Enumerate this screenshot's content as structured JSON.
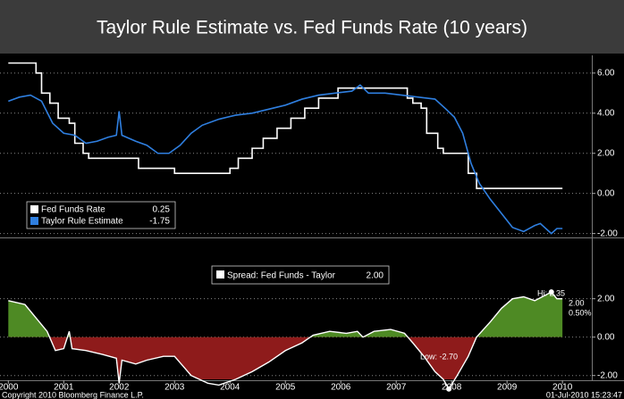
{
  "chart_data": [
    {
      "type": "line",
      "title": "Taylor Rule Estimate vs. Fed Funds Rate (10 years)",
      "xlim": [
        2000.35,
        2011.03
      ],
      "ylim": [
        -2.15,
        6.75
      ],
      "yticks": [
        {
          "value": 6,
          "label": "6.00"
        },
        {
          "value": 4,
          "label": "4.00"
        },
        {
          "value": 2,
          "label": "2.00"
        },
        {
          "value": 0,
          "label": "0.00"
        },
        {
          "value": -2,
          "label": "-2.00"
        }
      ],
      "grid": true,
      "legend": "lower left",
      "series": [
        {
          "name": "Fed Funds Rate",
          "color": "#ffffff",
          "step": true,
          "legend_value": "0.25",
          "x": [
            2000.5,
            2001.0,
            2001.1,
            2001.25,
            2001.4,
            2001.6,
            2001.7,
            2001.85,
            2001.95,
            2002.85,
            2003.5,
            2004.5,
            2004.65,
            2004.9,
            2005.1,
            2005.35,
            2005.6,
            2005.85,
            2006.1,
            2006.45,
            2007.7,
            2007.8,
            2007.95,
            2008.05,
            2008.25,
            2008.35,
            2008.8,
            2008.95,
            2010.5
          ],
          "values": [
            6.5,
            6.0,
            5.0,
            4.5,
            3.75,
            3.5,
            2.5,
            2.0,
            1.75,
            1.25,
            1.0,
            1.25,
            1.75,
            2.25,
            2.75,
            3.25,
            3.75,
            4.25,
            4.75,
            5.25,
            4.75,
            4.5,
            4.25,
            3.0,
            2.25,
            2.0,
            1.0,
            0.25,
            0.25
          ]
        },
        {
          "name": "Taylor Rule Estimate",
          "color": "#2f7fe0",
          "step": false,
          "legend_value": "-1.75",
          "x": [
            2000.5,
            2000.7,
            2000.9,
            2001.1,
            2001.3,
            2001.5,
            2001.7,
            2001.9,
            2002.1,
            2002.3,
            2002.45,
            2002.5,
            2002.55,
            2002.8,
            2003.0,
            2003.2,
            2003.4,
            2003.6,
            2003.8,
            2004.0,
            2004.3,
            2004.6,
            2004.9,
            2005.2,
            2005.5,
            2005.8,
            2006.1,
            2006.4,
            2006.7,
            2006.85,
            2007.0,
            2007.3,
            2007.6,
            2007.9,
            2008.2,
            2008.4,
            2008.55,
            2008.7,
            2008.85,
            2009.0,
            2009.2,
            2009.4,
            2009.6,
            2009.8,
            2010.0,
            2010.1,
            2010.3,
            2010.4,
            2010.5
          ],
          "values": [
            4.6,
            4.8,
            4.9,
            4.6,
            3.5,
            3.0,
            2.9,
            2.5,
            2.6,
            2.8,
            2.9,
            4.1,
            2.9,
            2.6,
            2.4,
            2.0,
            2.0,
            2.4,
            3.0,
            3.4,
            3.7,
            3.9,
            4.0,
            4.2,
            4.4,
            4.7,
            4.9,
            5.0,
            5.1,
            5.4,
            5.0,
            5.0,
            4.9,
            4.8,
            4.7,
            4.2,
            3.8,
            3.0,
            1.5,
            0.5,
            -0.3,
            -1.0,
            -1.7,
            -1.9,
            -1.6,
            -1.5,
            -2.0,
            -1.75,
            -1.75
          ]
        }
      ]
    },
    {
      "type": "area",
      "xlim": [
        2000.35,
        2011.03
      ],
      "ylim": [
        -2.2,
        5.1
      ],
      "yticks": [
        {
          "value": 2,
          "label": "2.00"
        },
        {
          "value": 0,
          "label": "0.00"
        },
        {
          "value": -2,
          "label": "-2.00"
        }
      ],
      "xticks": [
        {
          "value": 2000.5,
          "label": "2000"
        },
        {
          "value": 2001.5,
          "label": "2001"
        },
        {
          "value": 2002.5,
          "label": "2002"
        },
        {
          "value": 2003.5,
          "label": "2003"
        },
        {
          "value": 2004.5,
          "label": "2004"
        },
        {
          "value": 2005.5,
          "label": "2005"
        },
        {
          "value": 2006.5,
          "label": "2006"
        },
        {
          "value": 2007.5,
          "label": "2007"
        },
        {
          "value": 2008.5,
          "label": "2008"
        },
        {
          "value": 2009.5,
          "label": "2009"
        },
        {
          "value": 2010.5,
          "label": "2010"
        }
      ],
      "grid": true,
      "series": [
        {
          "name": "Spread: Fed Funds - Taylor",
          "color": "#ffffff",
          "positive_color": "#4e8a24",
          "negative_color": "#8e1b1b",
          "legend_value": "2.00",
          "x": [
            2000.5,
            2000.8,
            2001.0,
            2001.2,
            2001.35,
            2001.5,
            2001.6,
            2001.65,
            2001.9,
            2002.2,
            2002.45,
            2002.5,
            2002.55,
            2002.8,
            2003.0,
            2003.3,
            2003.5,
            2003.8,
            2004.1,
            2004.3,
            2004.6,
            2004.9,
            2005.2,
            2005.5,
            2005.8,
            2006.0,
            2006.3,
            2006.6,
            2006.8,
            2006.9,
            2007.1,
            2007.4,
            2007.65,
            2007.8,
            2008.0,
            2008.2,
            2008.35,
            2008.45,
            2008.6,
            2008.8,
            2008.95,
            2009.2,
            2009.4,
            2009.6,
            2009.8,
            2010.0,
            2010.2,
            2010.3,
            2010.4,
            2010.5
          ],
          "values": [
            1.9,
            1.7,
            1.0,
            0.3,
            -0.7,
            -0.6,
            0.3,
            -0.6,
            -0.7,
            -0.9,
            -1.1,
            -2.4,
            -1.2,
            -1.4,
            -1.2,
            -1.0,
            -1.0,
            -2.0,
            -2.4,
            -2.5,
            -2.2,
            -1.8,
            -1.3,
            -0.7,
            -0.3,
            0.1,
            0.3,
            0.2,
            0.3,
            0.0,
            0.3,
            0.4,
            0.2,
            -0.3,
            -1.0,
            -1.8,
            -2.2,
            -2.7,
            -2.0,
            -1.0,
            0.0,
            0.8,
            1.5,
            2.0,
            2.1,
            1.9,
            2.2,
            2.35,
            2.0,
            2.0
          ]
        }
      ],
      "annotations": [
        {
          "text": "Hi: 2.35",
          "point": 47
        },
        {
          "text": "2.00"
        },
        {
          "text": "0.50%"
        },
        {
          "text": "Low: -2.70",
          "point": 37
        }
      ]
    }
  ],
  "footer": {
    "left": "Copyright 2010 Bloomberg Finance L.P.",
    "right": "01-Jul-2010 15:23:47"
  }
}
